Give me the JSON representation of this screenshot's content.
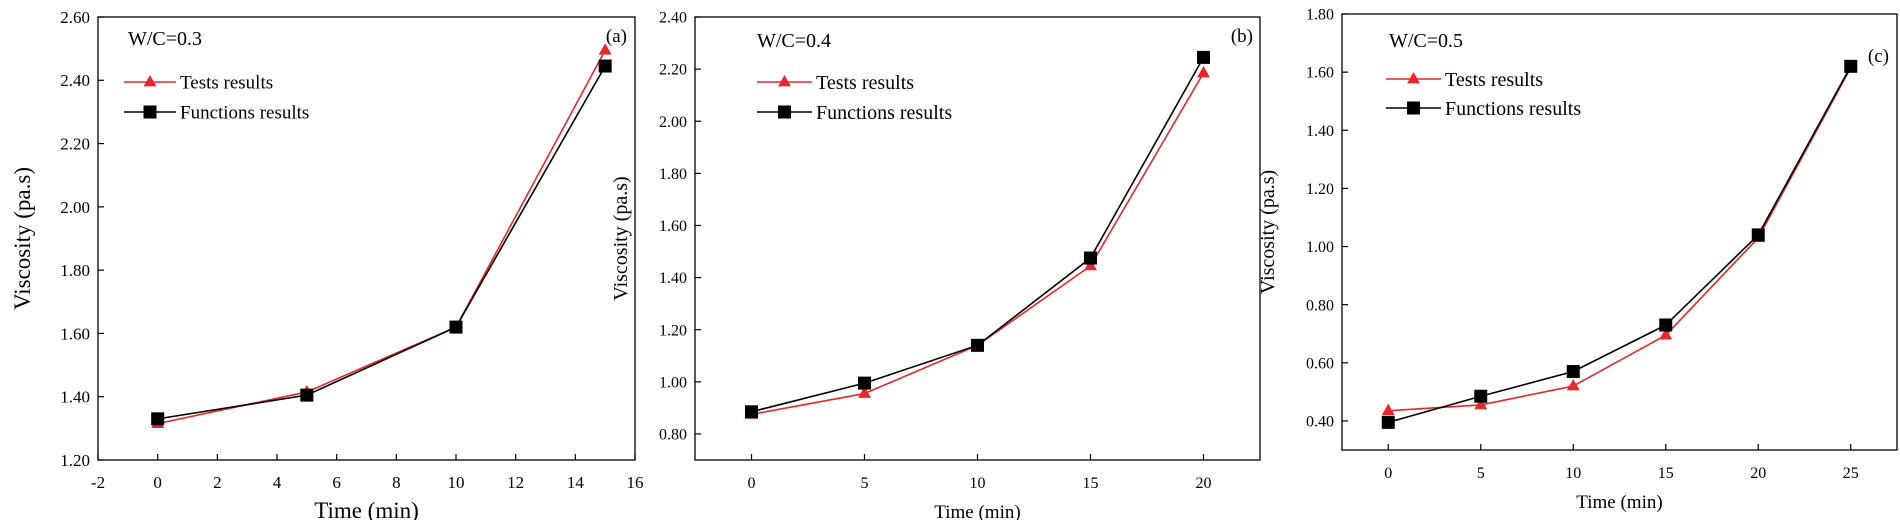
{
  "chart_data": [
    {
      "type": "line",
      "panel": "(a)",
      "annotation": "W/C=0.3",
      "xlabel": "Time (min)",
      "ylabel": "Viscosity (pa.s)",
      "xlim": [
        -2,
        16
      ],
      "ylim": [
        1.2,
        2.6
      ],
      "xticks": [
        -2,
        0,
        2,
        4,
        6,
        8,
        10,
        12,
        14,
        16
      ],
      "xtick_labels": [
        "-2",
        "0",
        "2",
        "4",
        "6",
        "8",
        "10",
        "12",
        "14",
        "16"
      ],
      "yticks": [
        1.2,
        1.4,
        1.6,
        1.8,
        2.0,
        2.2,
        2.4,
        2.6
      ],
      "ytick_labels": [
        "1.20",
        "1.40",
        "1.60",
        "1.80",
        "2.00",
        "2.20",
        "2.40",
        "2.60"
      ],
      "legend_position": "top-left",
      "series": [
        {
          "name": "Tests results",
          "color": "#e8262b",
          "marker": "triangle",
          "x": [
            0,
            5,
            10,
            15
          ],
          "values": [
            1.315,
            1.415,
            1.62,
            2.495
          ]
        },
        {
          "name": "Functions results",
          "color": "#000000",
          "marker": "square",
          "x": [
            0,
            5,
            10,
            15
          ],
          "values": [
            1.33,
            1.405,
            1.62,
            2.445
          ]
        }
      ]
    },
    {
      "type": "line",
      "panel": "(b)",
      "annotation": "W/C=0.4",
      "xlabel": "Time (min)",
      "ylabel": "Viscosity (pa.s)",
      "xlim": [
        -2.5,
        22.5
      ],
      "ylim": [
        0.7,
        2.4
      ],
      "xticks": [
        0,
        5,
        10,
        15,
        20
      ],
      "xtick_labels": [
        "0",
        "5",
        "10",
        "15",
        "20"
      ],
      "yticks": [
        0.8,
        1.0,
        1.2,
        1.4,
        1.6,
        1.8,
        2.0,
        2.2,
        2.4
      ],
      "ytick_labels": [
        "0.80",
        "1.00",
        "1.20",
        "1.40",
        "1.60",
        "1.80",
        "2.00",
        "2.20",
        "2.40"
      ],
      "legend_position": "top-left",
      "series": [
        {
          "name": "Tests results",
          "color": "#e8262b",
          "marker": "triangle",
          "x": [
            0,
            5,
            10,
            15,
            20
          ],
          "values": [
            0.875,
            0.955,
            1.14,
            1.445,
            2.185
          ]
        },
        {
          "name": "Functions results",
          "color": "#000000",
          "marker": "square",
          "x": [
            0,
            5,
            10,
            15,
            20
          ],
          "values": [
            0.885,
            0.995,
            1.14,
            1.475,
            2.245
          ]
        }
      ]
    },
    {
      "type": "line",
      "panel": "(c)",
      "annotation": "W/C=0.5",
      "xlabel": "Time (min)",
      "ylabel": "Viscosity (pa.s)",
      "xlim": [
        -2.5,
        27.5
      ],
      "ylim": [
        0.3,
        1.8
      ],
      "xticks": [
        0,
        5,
        10,
        15,
        20,
        25
      ],
      "xtick_labels": [
        "0",
        "5",
        "10",
        "15",
        "20",
        "25"
      ],
      "yticks": [
        0.4,
        0.6,
        0.8,
        1.0,
        1.2,
        1.4,
        1.6,
        1.8
      ],
      "ytick_labels": [
        "0.40",
        "0.60",
        "0.80",
        "1.00",
        "1.20",
        "1.40",
        "1.60",
        "1.80"
      ],
      "legend_position": "top-left",
      "series": [
        {
          "name": "Tests results",
          "color": "#e8262b",
          "marker": "triangle",
          "x": [
            0,
            5,
            10,
            15,
            20,
            25
          ],
          "values": [
            0.435,
            0.455,
            0.52,
            0.695,
            1.03,
            1.615
          ]
        },
        {
          "name": "Functions results",
          "color": "#000000",
          "marker": "square",
          "x": [
            0,
            5,
            10,
            15,
            20,
            25
          ],
          "values": [
            0.395,
            0.485,
            0.57,
            0.73,
            1.04,
            1.62
          ]
        }
      ]
    }
  ]
}
